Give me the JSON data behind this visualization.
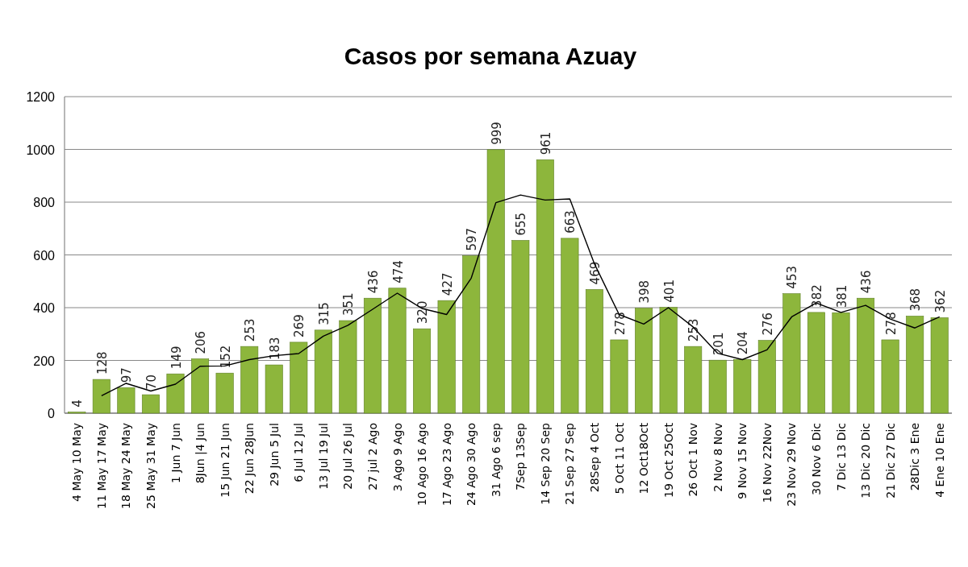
{
  "chart_data": {
    "type": "bar",
    "title": "Casos por semana Azuay",
    "categories": [
      "4 May 10 May",
      "11 May 17 May",
      "18 May 24 May",
      "25 May 31 May",
      "1 Jun 7 Jun",
      "8Jun |4 Jun",
      "15 Jun 21 Jun",
      "22 Jun 28Jun",
      "29 Jun 5 Jul",
      "6 Jul 12 Jul",
      "13 Jul 19 Jul",
      "20 Jul 26 Jul",
      "27 jul 2 Ago",
      "3 Ago 9 Ago",
      "10 Ago 16 Ago",
      "17 Ago 23 Ago",
      "24 Ago 30 Ago",
      "31 Ago  6 sep",
      "7Sep 13Sep",
      "14 Sep 20 Sep",
      "21 Sep 27 Sep",
      "28Sep 4 Oct",
      "5 Oct  11 Oct",
      "12 Oct18Oct",
      "19 Oct 25Oct",
      "26 Oct 1 Nov",
      "2 Nov 8 Nov",
      "9 Nov 15 Nov",
      "16 Nov 22Nov",
      "23 Nov 29 Nov",
      "30 Nov 6 Dic",
      "7 Dic 13 Dic",
      "13 Dic 20 Dic",
      "21 Dic 27 Dic",
      "28Dic 3 Ene",
      "4 Ene 10 Ene"
    ],
    "series": [
      {
        "color": "#8db63c",
        "data_labels": true,
        "values": [
          4,
          128,
          97,
          70,
          149,
          206,
          152,
          253,
          183,
          269,
          315,
          351,
          436,
          474,
          320,
          427,
          597,
          999,
          655,
          961,
          663,
          469,
          278,
          398,
          401,
          253,
          201,
          204,
          276,
          453,
          382,
          381,
          436,
          278,
          368,
          362
        ]
      },
      {
        "type": "line",
        "color": "#000000",
        "values": [
          null,
          66,
          113,
          84,
          110,
          178,
          179,
          203,
          218,
          226,
          292,
          333,
          394,
          455,
          397,
          374,
          512,
          798,
          827,
          808,
          812,
          566,
          374,
          338,
          400,
          327,
          227,
          203,
          240,
          365,
          418,
          382,
          409,
          357,
          323,
          365
        ]
      }
    ],
    "ylim": [
      0,
      1200
    ],
    "yticks": [
      0,
      200,
      400,
      600,
      800,
      1000,
      1200
    ],
    "grid": "y",
    "marker": "none",
    "line_style": "solid"
  }
}
